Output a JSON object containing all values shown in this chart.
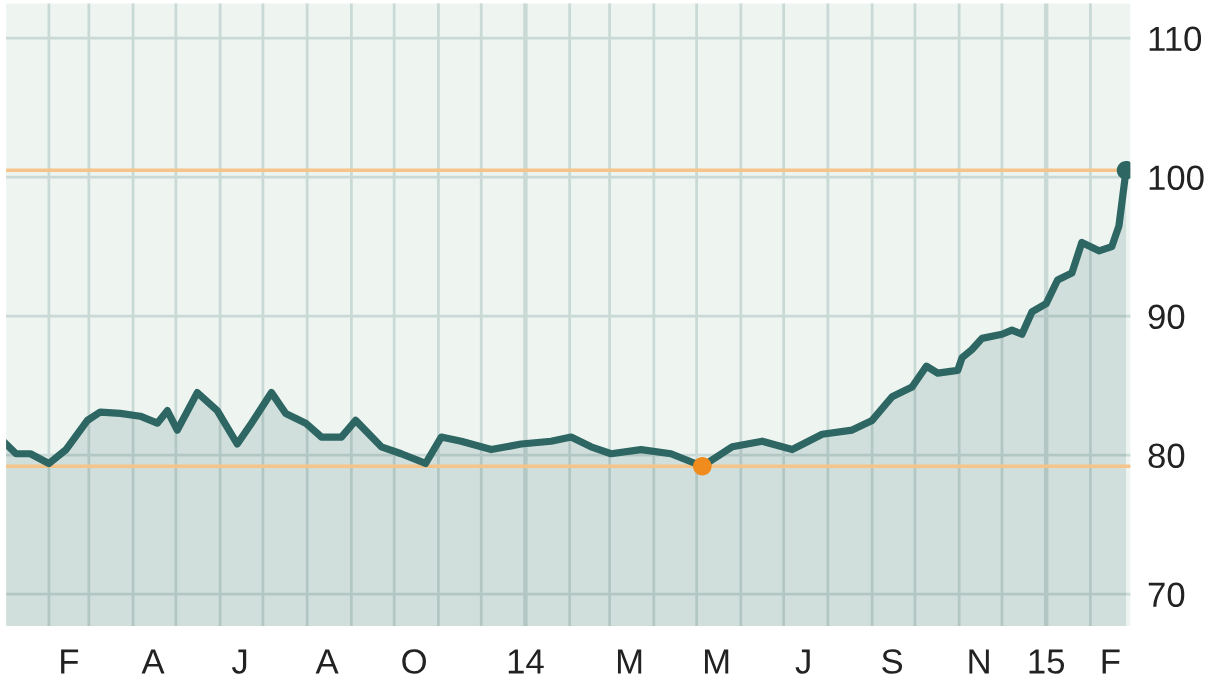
{
  "chart_data": {
    "type": "area",
    "x": [
      "2013-01-02",
      "2013-01-09",
      "2013-01-19",
      "2013-02-01",
      "2013-02-13",
      "2013-02-28",
      "2013-03-09",
      "2013-03-23",
      "2013-04-06",
      "2013-04-18",
      "2013-04-25",
      "2013-05-02",
      "2013-05-16",
      "2013-05-30",
      "2013-06-13",
      "2013-06-23",
      "2013-07-07",
      "2013-07-17",
      "2013-07-31",
      "2013-08-11",
      "2013-08-25",
      "2013-09-04",
      "2013-09-22",
      "2013-10-06",
      "2013-10-23",
      "2013-11-03",
      "2013-11-17",
      "2013-12-08",
      "2013-12-29",
      "2014-01-19",
      "2014-02-02",
      "2014-02-16",
      "2014-03-02",
      "2014-03-23",
      "2014-04-13",
      "2014-05-05",
      "2014-05-26",
      "2014-06-16",
      "2014-07-07",
      "2014-07-28",
      "2014-08-18",
      "2014-09-01",
      "2014-09-15",
      "2014-09-29",
      "2014-10-09",
      "2014-10-17",
      "2014-10-31",
      "2014-11-03",
      "2014-11-10",
      "2014-11-17",
      "2014-12-01",
      "2014-12-08",
      "2014-12-15",
      "2014-12-22",
      "2015-01-01",
      "2015-01-09",
      "2015-01-19",
      "2015-01-26",
      "2015-02-07",
      "2015-02-16",
      "2015-02-21",
      "2015-02-26"
    ],
    "series": [
      {
        "color": "#2e6663",
        "values": [
          80.8,
          80.1,
          80.1,
          79.4,
          80.4,
          82.5,
          83.1,
          83.0,
          82.8,
          82.3,
          83.2,
          81.8,
          84.5,
          83.2,
          80.8,
          82.3,
          84.5,
          83.0,
          82.3,
          81.3,
          81.3,
          82.5,
          80.6,
          80.1,
          79.4,
          81.3,
          81.0,
          80.4,
          80.8,
          81.0,
          81.3,
          80.6,
          80.1,
          80.4,
          80.1,
          79.2,
          80.6,
          81.0,
          80.4,
          81.5,
          81.8,
          82.5,
          84.2,
          84.9,
          86.4,
          85.9,
          86.1,
          87.0,
          87.6,
          88.4,
          88.7,
          89.0,
          88.7,
          90.3,
          90.9,
          92.6,
          93.1,
          95.3,
          94.7,
          95.0,
          96.5,
          100.5
        ]
      },
      {
        "type": "scatter",
        "color": "#2e6663",
        "x": [
          "2015-02-26"
        ],
        "values": [
          100.5
        ]
      },
      {
        "type": "scatter",
        "color": "#f08c1e",
        "x": [
          "2014-05-05"
        ],
        "values": [
          79.2
        ]
      }
    ],
    "xlim": [
      "2013-01-02",
      "2015-03-01"
    ],
    "xticks": [
      {
        "value": "2013-02-01",
        "label": null
      },
      {
        "value": "2013-03-01",
        "label": null
      },
      {
        "value": "2013-04-01",
        "label": null
      },
      {
        "value": "2013-05-01",
        "label": null
      },
      {
        "value": "2013-06-01",
        "label": null
      },
      {
        "value": "2013-07-01",
        "label": null
      },
      {
        "value": "2013-08-01",
        "label": null
      },
      {
        "value": "2013-09-01",
        "label": null
      },
      {
        "value": "2013-10-01",
        "label": null
      },
      {
        "value": "2013-11-01",
        "label": null
      },
      {
        "value": "2013-12-01",
        "label": null
      },
      {
        "value": "2014-02-01",
        "label": null
      },
      {
        "value": "2014-03-01",
        "label": null
      },
      {
        "value": "2014-04-01",
        "label": null
      },
      {
        "value": "2014-05-01",
        "label": null
      },
      {
        "value": "2014-06-01",
        "label": null
      },
      {
        "value": "2014-07-01",
        "label": null
      },
      {
        "value": "2014-08-01",
        "label": null
      },
      {
        "value": "2014-09-01",
        "label": null
      },
      {
        "value": "2014-10-01",
        "label": null
      },
      {
        "value": "2014-11-01",
        "label": null
      },
      {
        "value": "2014-12-01",
        "label": null
      },
      {
        "value": "2015-02-01",
        "label": null
      },
      {
        "value": "2013-02-15",
        "label": "F"
      },
      {
        "value": "2013-04-15",
        "label": "A"
      },
      {
        "value": "2013-06-15",
        "label": "J"
      },
      {
        "value": "2013-08-15",
        "label": "A"
      },
      {
        "value": "2013-10-15",
        "label": "O"
      },
      {
        "value": "2014-01-01",
        "label": "14"
      },
      {
        "value": "2014-03-15",
        "label": "M"
      },
      {
        "value": "2014-05-15",
        "label": "M"
      },
      {
        "value": "2014-07-15",
        "label": "J"
      },
      {
        "value": "2014-09-15",
        "label": "S"
      },
      {
        "value": "2014-11-15",
        "label": "N"
      },
      {
        "value": "2015-01-01",
        "label": "15"
      },
      {
        "value": "2015-02-15",
        "label": "F"
      }
    ],
    "ylim": [
      67.7,
      112.5
    ],
    "yticks": [
      70,
      80,
      90,
      100,
      110
    ],
    "ref_lines": [
      {
        "axis": "y",
        "value": 100.5,
        "color": "#f5c48a"
      },
      {
        "axis": "y",
        "value": 79.2,
        "color": "#f5c48a"
      }
    ],
    "grid": true,
    "legend": false
  }
}
